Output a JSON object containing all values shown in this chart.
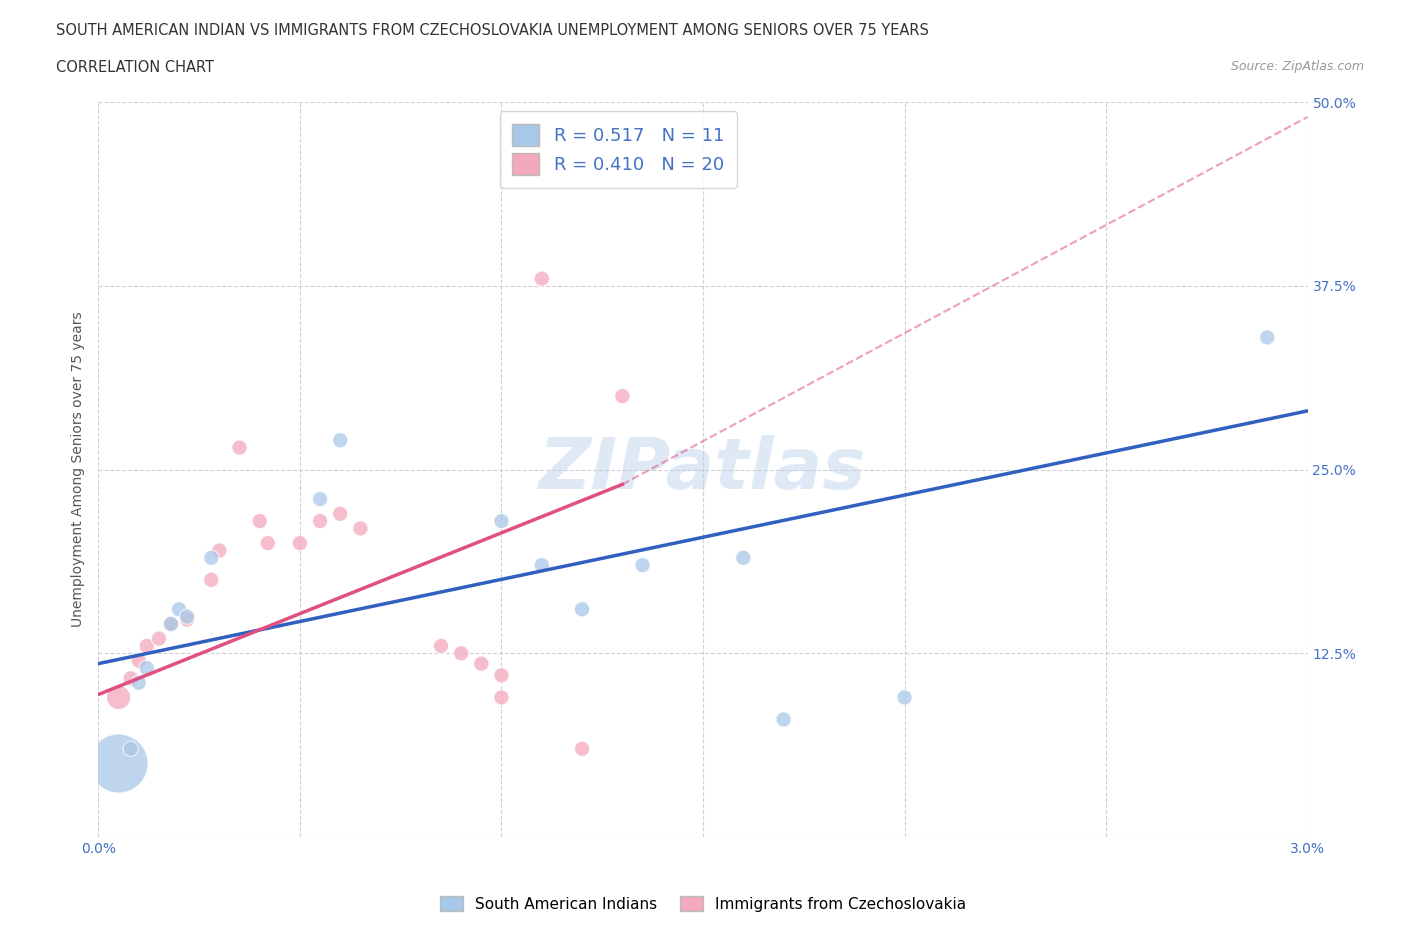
{
  "title_line1": "SOUTH AMERICAN INDIAN VS IMMIGRANTS FROM CZECHOSLOVAKIA UNEMPLOYMENT AMONG SENIORS OVER 75 YEARS",
  "title_line2": "CORRELATION CHART",
  "source": "Source: ZipAtlas.com",
  "ylabel": "Unemployment Among Seniors over 75 years",
  "xlim": [
    0,
    0.03
  ],
  "ylim": [
    0,
    0.5
  ],
  "xticks": [
    0.0,
    0.005,
    0.01,
    0.015,
    0.02,
    0.025,
    0.03
  ],
  "xticklabels": [
    "0.0%",
    "",
    "",
    "",
    "",
    "",
    "3.0%"
  ],
  "yticks": [
    0,
    0.125,
    0.25,
    0.375,
    0.5
  ],
  "yticklabels": [
    "",
    "12.5%",
    "25.0%",
    "37.5%",
    "50.0%"
  ],
  "blue_color": "#a8c8e8",
  "pink_color": "#f4a8bc",
  "blue_line_color": "#3060c0",
  "pink_line_color": "#e05080",
  "blue_scatter": [
    [
      0.0005,
      0.05
    ],
    [
      0.0008,
      0.06
    ],
    [
      0.001,
      0.105
    ],
    [
      0.0012,
      0.115
    ],
    [
      0.0018,
      0.145
    ],
    [
      0.002,
      0.155
    ],
    [
      0.0022,
      0.15
    ],
    [
      0.0028,
      0.19
    ],
    [
      0.0055,
      0.23
    ],
    [
      0.006,
      0.27
    ],
    [
      0.01,
      0.215
    ],
    [
      0.011,
      0.185
    ],
    [
      0.012,
      0.155
    ],
    [
      0.0135,
      0.185
    ],
    [
      0.016,
      0.19
    ],
    [
      0.017,
      0.08
    ],
    [
      0.02,
      0.095
    ],
    [
      0.029,
      0.34
    ]
  ],
  "blue_sizes": [
    120,
    120,
    120,
    120,
    120,
    120,
    120,
    120,
    120,
    120,
    120,
    120,
    120,
    120,
    120,
    120,
    120,
    120
  ],
  "blue_large_idx": 0,
  "blue_large_size": 1800,
  "pink_scatter": [
    [
      0.0005,
      0.095
    ],
    [
      0.0008,
      0.108
    ],
    [
      0.001,
      0.12
    ],
    [
      0.0012,
      0.13
    ],
    [
      0.0015,
      0.135
    ],
    [
      0.0018,
      0.145
    ],
    [
      0.0022,
      0.148
    ],
    [
      0.0028,
      0.175
    ],
    [
      0.003,
      0.195
    ],
    [
      0.0035,
      0.265
    ],
    [
      0.004,
      0.215
    ],
    [
      0.0042,
      0.2
    ],
    [
      0.005,
      0.2
    ],
    [
      0.0055,
      0.215
    ],
    [
      0.006,
      0.22
    ],
    [
      0.0065,
      0.21
    ],
    [
      0.0085,
      0.13
    ],
    [
      0.009,
      0.125
    ],
    [
      0.0095,
      0.118
    ],
    [
      0.01,
      0.11
    ],
    [
      0.01,
      0.095
    ],
    [
      0.011,
      0.38
    ],
    [
      0.012,
      0.06
    ],
    [
      0.013,
      0.3
    ]
  ],
  "pink_sizes": [
    120,
    120,
    120,
    120,
    120,
    120,
    120,
    120,
    120,
    120,
    120,
    120,
    120,
    120,
    120,
    120,
    120,
    120,
    120,
    120,
    120,
    120,
    120,
    120
  ],
  "pink_large_idx": 0,
  "pink_large_size": 300,
  "R_blue": 0.517,
  "N_blue": 11,
  "R_pink": 0.41,
  "N_pink": 20,
  "blue_line": [
    [
      0.0,
      0.118
    ],
    [
      0.03,
      0.29
    ]
  ],
  "pink_line_solid": [
    [
      0.0,
      0.097
    ],
    [
      0.013,
      0.24
    ]
  ],
  "pink_line_dash": [
    [
      0.013,
      0.24
    ],
    [
      0.03,
      0.49
    ]
  ],
  "watermark": "ZIPatlas",
  "background_color": "#ffffff",
  "grid_color": "#cccccc"
}
